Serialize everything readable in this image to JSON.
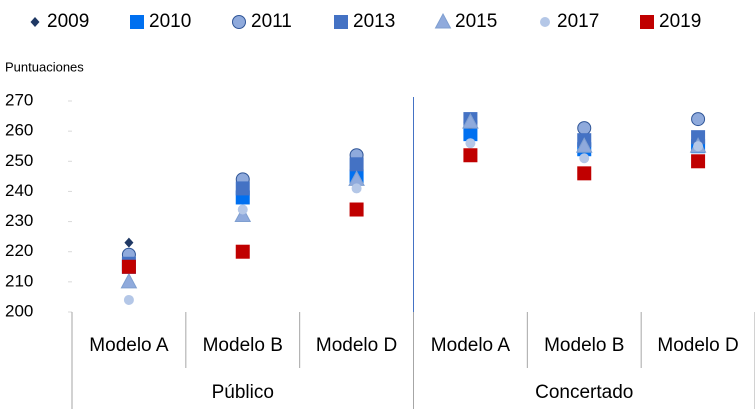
{
  "chart_data": {
    "type": "scatter",
    "ylabel": "Puntuaciones",
    "groups": [
      {
        "label": "Público",
        "categories": [
          "Modelo A",
          "Modelo B",
          "Modelo D"
        ]
      },
      {
        "label": "Concertado",
        "categories": [
          "Modelo A",
          "Modelo B",
          "Modelo D"
        ]
      }
    ],
    "ylim": [
      200,
      270
    ],
    "yticks": [
      200,
      210,
      220,
      230,
      240,
      250,
      260,
      270
    ],
    "grid": false,
    "legend": "top",
    "series": [
      {
        "name": "2009",
        "color": "#1f3864",
        "marker": "diamond",
        "values": [
          223,
          240,
          246,
          263,
          255,
          255
        ]
      },
      {
        "name": "2010",
        "color": "#0070f0",
        "marker": "square",
        "values": [
          215,
          238,
          245,
          259,
          254,
          255
        ]
      },
      {
        "name": "2011",
        "color": "#8faadc",
        "marker": "circle",
        "values": [
          219,
          244,
          252,
          263,
          261,
          264
        ]
      },
      {
        "name": "2013",
        "color": "#4472c4",
        "marker": "square",
        "values": [
          216,
          241,
          249,
          264,
          257,
          258
        ]
      },
      {
        "name": "2015",
        "color": "#8faadc",
        "marker": "triangle",
        "values": [
          210,
          232,
          244,
          263,
          255,
          255
        ]
      },
      {
        "name": "2017",
        "color": "#b4c7e7",
        "marker": "smallcircle",
        "values": [
          204,
          234,
          241,
          256,
          251,
          255
        ]
      },
      {
        "name": "2019",
        "color": "#c00000",
        "marker": "square",
        "values": [
          215,
          220,
          234,
          252,
          246,
          250
        ]
      }
    ]
  }
}
